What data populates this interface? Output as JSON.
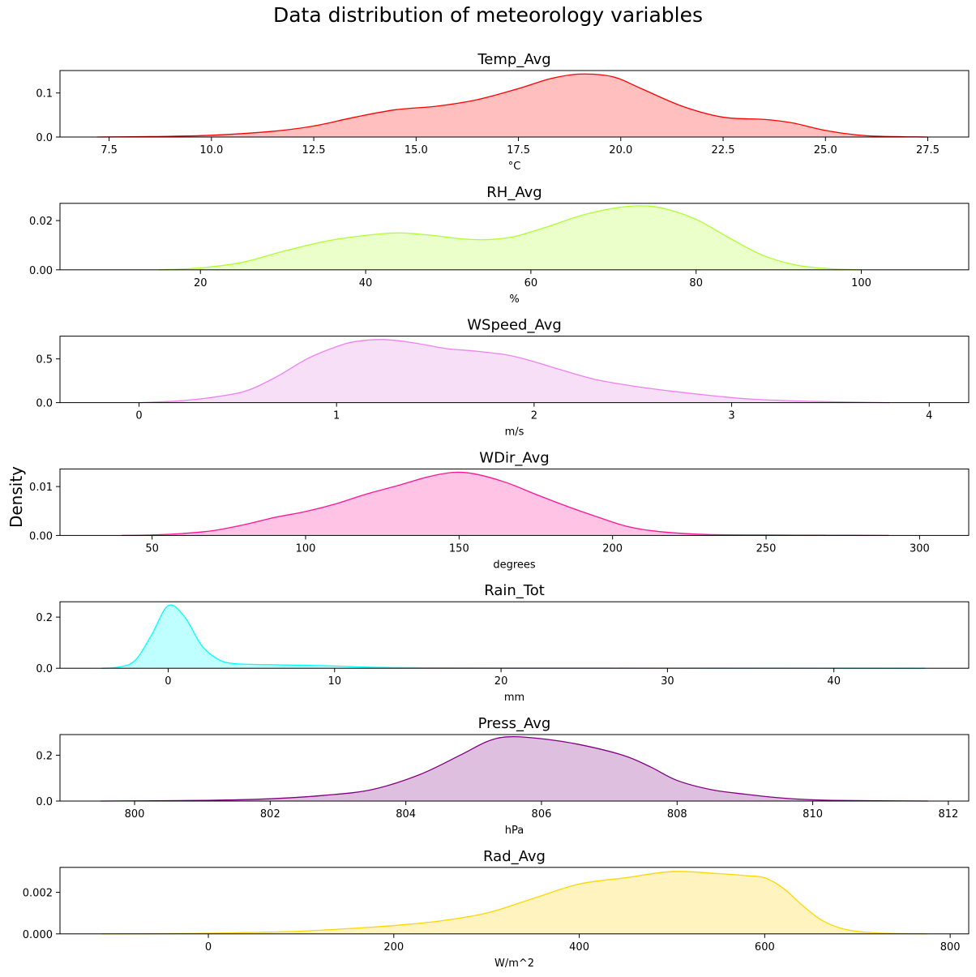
{
  "figure": {
    "title": "Data distribution of meteorology variables",
    "ylabel": "Density"
  },
  "chart_data": [
    {
      "type": "area",
      "title": "Temp_Avg",
      "xlabel": "°C",
      "color": "#ff0000",
      "fill": "#ffbfbf",
      "xlim": [
        6.3,
        28.5
      ],
      "ylim": [
        0,
        0.151
      ],
      "xticks": [
        7.5,
        10.0,
        12.5,
        15.0,
        17.5,
        20.0,
        22.5,
        25.0,
        27.5
      ],
      "xtick_labels": [
        "7.5",
        "10.0",
        "12.5",
        "15.0",
        "17.5",
        "20.0",
        "22.5",
        "25.0",
        "27.5"
      ],
      "yticks": [
        0.0,
        0.1
      ],
      "ytick_labels": [
        "0.0",
        "0.1"
      ],
      "x": [
        7.2,
        8.5,
        10.0,
        11.5,
        12.5,
        13.5,
        14.5,
        15.5,
        16.5,
        17.5,
        18.3,
        19.0,
        19.8,
        20.5,
        21.5,
        22.5,
        23.5,
        24.2,
        25.0,
        26.0,
        27.5
      ],
      "y": [
        0.0,
        0.001,
        0.004,
        0.013,
        0.025,
        0.045,
        0.062,
        0.07,
        0.085,
        0.11,
        0.133,
        0.143,
        0.137,
        0.11,
        0.07,
        0.045,
        0.04,
        0.032,
        0.015,
        0.003,
        0.0
      ]
    },
    {
      "type": "area",
      "title": "RH_Avg",
      "xlabel": "%",
      "color": "#adff2f",
      "fill": "#ebffcb",
      "xlim": [
        3,
        113
      ],
      "ylim": [
        0,
        0.027
      ],
      "xticks": [
        20,
        40,
        60,
        80,
        100
      ],
      "xtick_labels": [
        "20",
        "40",
        "60",
        "80",
        "100"
      ],
      "yticks": [
        0.0,
        0.02
      ],
      "ytick_labels": [
        "0.00",
        "0.02"
      ],
      "x": [
        15,
        20,
        25,
        30,
        35,
        40,
        44,
        48,
        52,
        55,
        58,
        62,
        66,
        70,
        73,
        76,
        80,
        84,
        88,
        92,
        96,
        100
      ],
      "y": [
        0.0,
        0.0008,
        0.003,
        0.0075,
        0.0115,
        0.014,
        0.015,
        0.014,
        0.0125,
        0.0123,
        0.0135,
        0.0175,
        0.022,
        0.025,
        0.026,
        0.025,
        0.0205,
        0.013,
        0.006,
        0.002,
        0.0005,
        0.0
      ]
    },
    {
      "type": "area",
      "title": "WSpeed_Avg",
      "xlabel": "m/s",
      "color": "#ee82ee",
      "fill": "#f8dff8",
      "xlim": [
        -0.4,
        4.2
      ],
      "ylim": [
        0,
        0.76
      ],
      "xticks": [
        0,
        1,
        2,
        3,
        4
      ],
      "xtick_labels": [
        "0",
        "1",
        "2",
        "3",
        "4"
      ],
      "yticks": [
        0.0,
        0.5
      ],
      "ytick_labels": [
        "0.0",
        "0.5"
      ],
      "x": [
        0.0,
        0.2,
        0.4,
        0.55,
        0.7,
        0.85,
        1.0,
        1.1,
        1.25,
        1.4,
        1.55,
        1.7,
        1.85,
        1.95,
        2.1,
        2.3,
        2.5,
        2.7,
        2.9,
        3.1,
        3.4,
        3.8
      ],
      "y": [
        0.0,
        0.02,
        0.07,
        0.14,
        0.3,
        0.5,
        0.64,
        0.7,
        0.72,
        0.68,
        0.62,
        0.59,
        0.55,
        0.5,
        0.4,
        0.27,
        0.19,
        0.13,
        0.08,
        0.04,
        0.015,
        0.0
      ]
    },
    {
      "type": "area",
      "title": "WDir_Avg",
      "xlabel": "degrees",
      "color": "#ff1493",
      "fill": "#ffc3e5",
      "xlim": [
        20,
        316
      ],
      "ylim": [
        0,
        0.0136
      ],
      "xticks": [
        50,
        100,
        150,
        200,
        250,
        300
      ],
      "xtick_labels": [
        "50",
        "100",
        "150",
        "200",
        "250",
        "300"
      ],
      "yticks": [
        0.0,
        0.01
      ],
      "ytick_labels": [
        "0.00",
        "0.01"
      ],
      "x": [
        40,
        50,
        60,
        70,
        80,
        90,
        100,
        110,
        120,
        130,
        140,
        148,
        155,
        165,
        175,
        185,
        195,
        205,
        215,
        230,
        250,
        270,
        290
      ],
      "y": [
        0.0,
        0.0001,
        0.0004,
        0.001,
        0.0022,
        0.0037,
        0.0049,
        0.0065,
        0.0085,
        0.0102,
        0.012,
        0.0129,
        0.0126,
        0.0109,
        0.0084,
        0.006,
        0.0038,
        0.0018,
        0.0008,
        0.0002,
        0.0001,
        5e-05,
        0.0
      ]
    },
    {
      "type": "area",
      "title": "Rain_Tot",
      "xlabel": "mm",
      "color": "#00ffff",
      "fill": "#bfffff",
      "xlim": [
        -6.5,
        48.1
      ],
      "ylim": [
        0,
        0.26
      ],
      "xticks": [
        0,
        10,
        20,
        30,
        40
      ],
      "xtick_labels": [
        "0",
        "10",
        "20",
        "30",
        "40"
      ],
      "yticks": [
        0.0,
        0.2
      ],
      "ytick_labels": [
        "0.0",
        "0.2"
      ],
      "x": [
        -4,
        -3,
        -2,
        -1,
        0,
        1,
        2,
        3,
        4,
        6,
        8,
        10,
        12,
        15,
        20,
        30,
        40,
        45.5
      ],
      "y": [
        0.0,
        0.004,
        0.03,
        0.13,
        0.245,
        0.2,
        0.09,
        0.035,
        0.018,
        0.014,
        0.012,
        0.009,
        0.004,
        0.002,
        0.0015,
        0.001,
        0.0005,
        0.0
      ]
    },
    {
      "type": "area",
      "title": "Press_Avg",
      "xlabel": "hPa",
      "color": "#800080",
      "fill": "#dfbfdf",
      "xlim": [
        798.9,
        812.3
      ],
      "ylim": [
        0,
        0.29
      ],
      "xticks": [
        800,
        802,
        804,
        806,
        808,
        810,
        812
      ],
      "xtick_labels": [
        "800",
        "802",
        "804",
        "806",
        "808",
        "810",
        "812"
      ],
      "yticks": [
        0.0,
        0.2
      ],
      "ytick_labels": [
        "0.0",
        "0.2"
      ],
      "x": [
        799.5,
        801.0,
        802.0,
        802.8,
        803.5,
        804.2,
        804.8,
        805.2,
        805.5,
        805.9,
        806.5,
        807.2,
        807.6,
        808.0,
        808.5,
        809.0,
        809.6,
        810.3,
        811.7
      ],
      "y": [
        0.0,
        0.003,
        0.01,
        0.025,
        0.05,
        0.115,
        0.2,
        0.26,
        0.28,
        0.275,
        0.25,
        0.2,
        0.15,
        0.09,
        0.05,
        0.03,
        0.012,
        0.003,
        0.0
      ]
    },
    {
      "type": "area",
      "title": "Rad_Avg",
      "xlabel": "W/m^2",
      "color": "#ffd700",
      "fill": "#fff3bf",
      "xlim": [
        -160,
        820
      ],
      "ylim": [
        0,
        0.0032
      ],
      "xticks": [
        0,
        200,
        400,
        600,
        800
      ],
      "xtick_labels": [
        "0",
        "200",
        "400",
        "600",
        "800"
      ],
      "yticks": [
        0.0,
        0.002
      ],
      "ytick_labels": [
        "0.000",
        "0.002"
      ],
      "x": [
        -115,
        -50,
        0,
        50,
        100,
        150,
        200,
        250,
        300,
        350,
        400,
        450,
        500,
        550,
        580,
        600,
        620,
        640,
        660,
        680,
        700,
        730,
        775
      ],
      "y": [
        0.0,
        1e-05,
        3e-05,
        7e-05,
        0.00013,
        0.00025,
        0.0004,
        0.00062,
        0.001,
        0.0017,
        0.0024,
        0.0027,
        0.003,
        0.0029,
        0.0028,
        0.0027,
        0.0022,
        0.0014,
        0.0007,
        0.0003,
        0.00012,
        3e-05,
        0.0
      ]
    }
  ]
}
